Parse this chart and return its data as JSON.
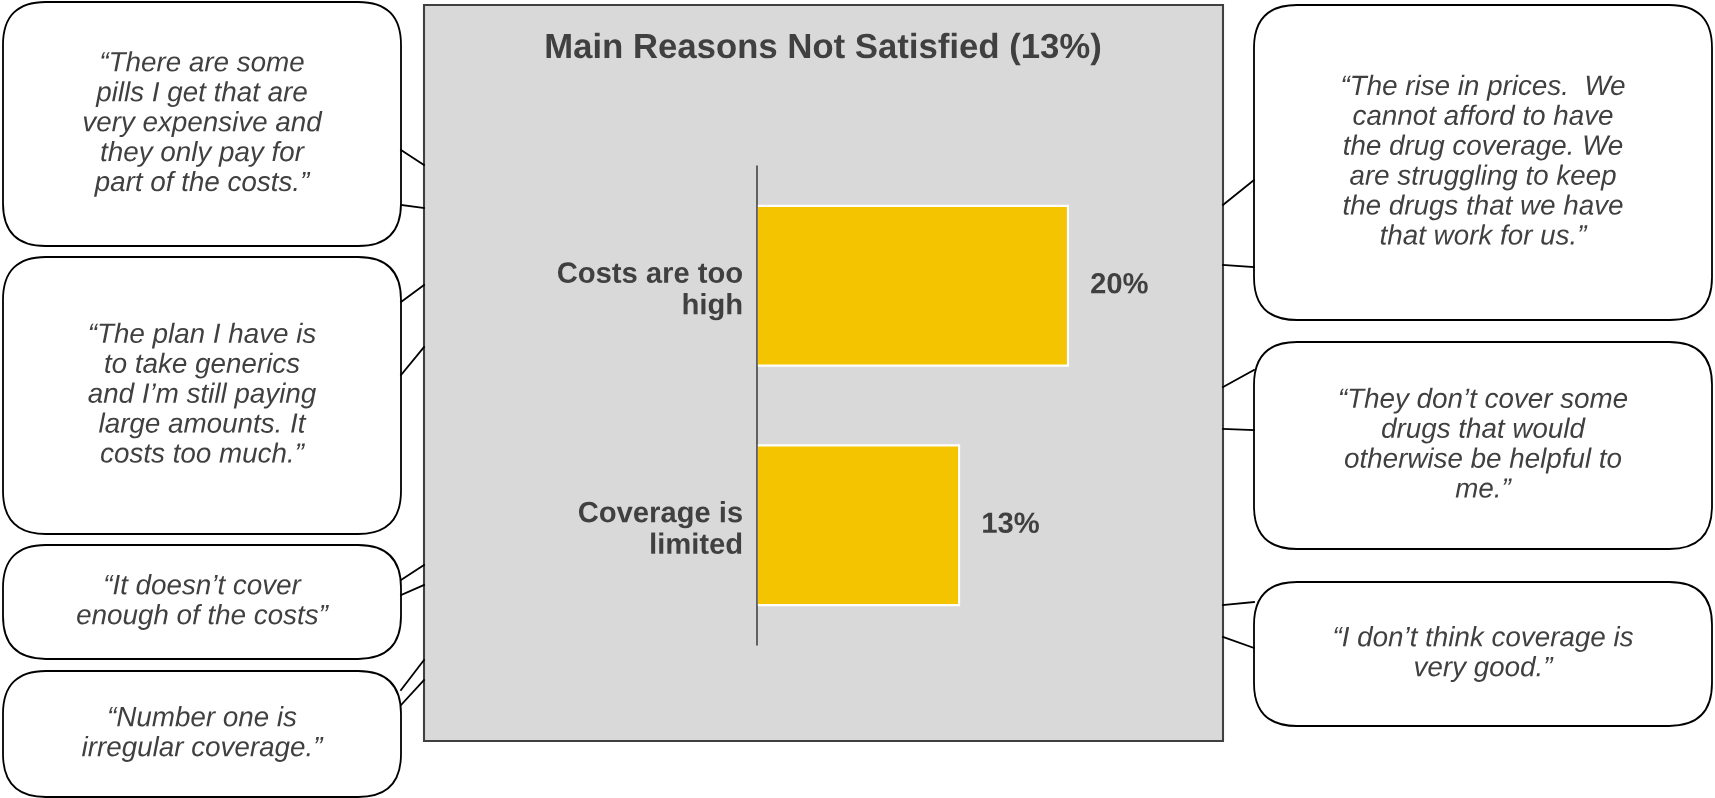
{
  "chart_data": {
    "type": "bar",
    "orientation": "horizontal",
    "title": "Main Reasons Not Satisfied (13%)",
    "categories": [
      "Costs are too\nhigh",
      "Coverage is\nlimited"
    ],
    "values": [
      20,
      13
    ],
    "color": "#f5c400",
    "value_labels": [
      "20%",
      "13%"
    ],
    "annotations": [
      "“There are some\npills I get that are\nvery expensive and\nthey only pay for\npart of the costs.”",
      "“The plan I have is\nto take generics\nand I’m still paying\nlarge amounts. It\ncosts too much.”",
      "“It doesn’t cover\nenough of the costs”",
      "“Number one is\nirregular coverage.”",
      "“The rise in prices.  We\ncannot afford to have\nthe drug coverage. We\nare struggling to keep\nthe drugs that we have\nthat work for us.”",
      "“They don’t cover some\ndrugs that would\notherwise be helpful to\nme.”",
      "“I don’t think coverage is\nvery good.”"
    ]
  }
}
